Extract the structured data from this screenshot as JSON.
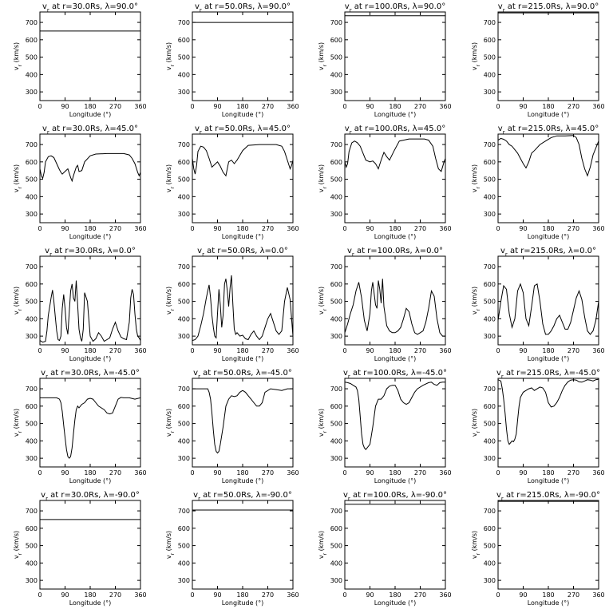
{
  "figure": {
    "grid_title_template": "v_r at r={r}Rs, λ={lat}°"
  },
  "chart_data": {
    "type": "line",
    "layout": "5 rows x 4 columns",
    "xlabel": "Longitude (°)",
    "ylabel": "v_r (km/s)",
    "xlim": [
      0,
      360
    ],
    "ylim": [
      250,
      760
    ],
    "xticks": [
      0,
      90,
      180,
      270,
      360
    ],
    "yticks": [
      300,
      400,
      500,
      600,
      700
    ],
    "radii": [
      "30.0",
      "50.0",
      "100.0",
      "215.0"
    ],
    "latitudes": [
      "90.0",
      "45.0",
      "0.0",
      "-45.0",
      "-90.0"
    ],
    "panels": [
      {
        "title": "v_r at r=30.0Rs, λ=90.0°",
        "x": [
          0,
          360
        ],
        "y": [
          650,
          650
        ]
      },
      {
        "title": "v_r at r=50.0Rs, λ=90.0°",
        "x": [
          0,
          360
        ],
        "y": [
          700,
          700
        ]
      },
      {
        "title": "v_r at r=100.0Rs, λ=90.0°",
        "x": [
          0,
          360
        ],
        "y": [
          738,
          738
        ]
      },
      {
        "title": "v_r at r=215.0Rs, λ=90.0°",
        "x": [
          0,
          360
        ],
        "y": [
          755,
          755
        ]
      },
      {
        "title": "v_r at r=30.0Rs, λ=45.0°",
        "x": [
          0,
          5,
          10,
          15,
          20,
          30,
          40,
          50,
          60,
          70,
          75,
          80,
          90,
          100,
          110,
          115,
          120,
          130,
          135,
          140,
          150,
          160,
          180,
          200,
          240,
          270,
          300,
          320,
          330,
          340,
          350,
          355,
          360
        ],
        "y": [
          560,
          520,
          505,
          540,
          600,
          630,
          635,
          625,
          590,
          555,
          540,
          530,
          545,
          560,
          510,
          490,
          520,
          570,
          580,
          545,
          550,
          600,
          635,
          645,
          648,
          648,
          648,
          640,
          620,
          590,
          540,
          520,
          540
        ]
      },
      {
        "title": "v_r at r=50.0Rs, λ=45.0°",
        "x": [
          0,
          5,
          10,
          15,
          20,
          30,
          40,
          50,
          60,
          70,
          80,
          90,
          100,
          110,
          120,
          130,
          140,
          150,
          160,
          180,
          200,
          240,
          270,
          300,
          320,
          330,
          340,
          350,
          355,
          360
        ],
        "y": [
          620,
          560,
          530,
          580,
          660,
          690,
          685,
          665,
          620,
          570,
          585,
          600,
          575,
          540,
          520,
          600,
          610,
          590,
          610,
          665,
          695,
          700,
          700,
          700,
          690,
          660,
          610,
          560,
          580,
          610
        ]
      },
      {
        "title": "v_r at r=100.0Rs, λ=45.0°",
        "x": [
          0,
          5,
          10,
          15,
          25,
          35,
          45,
          55,
          65,
          75,
          90,
          100,
          110,
          120,
          130,
          140,
          150,
          160,
          175,
          195,
          230,
          260,
          285,
          300,
          315,
          325,
          335,
          345,
          355,
          360
        ],
        "y": [
          600,
          570,
          590,
          660,
          710,
          720,
          710,
          690,
          650,
          610,
          600,
          605,
          590,
          560,
          610,
          655,
          630,
          610,
          660,
          720,
          732,
          732,
          732,
          725,
          690,
          620,
          560,
          545,
          600,
          620
        ]
      },
      {
        "title": "v_r at r=215.0Rs, λ=45.0°",
        "x": [
          0,
          10,
          20,
          30,
          40,
          50,
          60,
          70,
          80,
          90,
          100,
          110,
          120,
          130,
          150,
          170,
          190,
          210,
          240,
          270,
          280,
          290,
          300,
          310,
          320,
          330,
          340,
          350,
          360
        ],
        "y": [
          725,
          735,
          730,
          720,
          700,
          690,
          670,
          650,
          620,
          590,
          565,
          600,
          650,
          665,
          700,
          720,
          740,
          750,
          750,
          752,
          740,
          700,
          620,
          560,
          520,
          570,
          640,
          680,
          720
        ]
      },
      {
        "title": "v_r at r=30.0Rs, λ=0.0°",
        "x": [
          0,
          10,
          20,
          25,
          30,
          35,
          40,
          45,
          50,
          55,
          60,
          65,
          70,
          75,
          80,
          85,
          90,
          95,
          100,
          105,
          110,
          115,
          120,
          125,
          130,
          135,
          140,
          145,
          150,
          155,
          160,
          170,
          180,
          190,
          200,
          210,
          220,
          230,
          240,
          250,
          260,
          270,
          280,
          290,
          300,
          310,
          320,
          325,
          330,
          335,
          340,
          345,
          350,
          355,
          360
        ],
        "y": [
          275,
          265,
          270,
          330,
          420,
          470,
          520,
          565,
          500,
          410,
          330,
          280,
          275,
          300,
          460,
          540,
          460,
          350,
          310,
          440,
          560,
          600,
          520,
          500,
          620,
          480,
          340,
          290,
          270,
          340,
          550,
          500,
          300,
          270,
          285,
          320,
          300,
          270,
          280,
          290,
          340,
          380,
          330,
          295,
          285,
          280,
          380,
          520,
          570,
          540,
          430,
          340,
          300,
          290,
          275
        ]
      },
      {
        "title": "v_r at r=50.0Rs, λ=0.0°",
        "x": [
          0,
          10,
          20,
          30,
          40,
          50,
          55,
          60,
          65,
          70,
          75,
          80,
          85,
          90,
          95,
          100,
          105,
          110,
          115,
          120,
          125,
          130,
          135,
          140,
          145,
          150,
          155,
          160,
          170,
          180,
          190,
          200,
          210,
          220,
          230,
          240,
          250,
          260,
          270,
          280,
          290,
          300,
          310,
          320,
          330,
          340,
          350,
          360
        ],
        "y": [
          275,
          280,
          300,
          360,
          430,
          520,
          560,
          595,
          520,
          420,
          350,
          300,
          290,
          430,
          570,
          480,
          350,
          420,
          600,
          630,
          560,
          470,
          580,
          650,
          480,
          340,
          310,
          320,
          300,
          305,
          285,
          280,
          310,
          330,
          300,
          280,
          300,
          350,
          400,
          430,
          380,
          330,
          310,
          330,
          500,
          580,
          510,
          300
        ]
      },
      {
        "title": "v_r at r=100.0Rs, λ=0.0°",
        "x": [
          0,
          10,
          20,
          30,
          40,
          50,
          60,
          70,
          80,
          90,
          95,
          100,
          110,
          115,
          120,
          125,
          130,
          135,
          140,
          150,
          160,
          170,
          180,
          190,
          200,
          210,
          220,
          230,
          240,
          250,
          260,
          270,
          280,
          290,
          300,
          310,
          320,
          330,
          340,
          350,
          360
        ],
        "y": [
          320,
          370,
          430,
          480,
          560,
          610,
          520,
          390,
          330,
          430,
          560,
          610,
          480,
          460,
          620,
          570,
          490,
          630,
          470,
          360,
          330,
          320,
          320,
          330,
          350,
          400,
          460,
          440,
          370,
          320,
          310,
          320,
          330,
          380,
          460,
          560,
          530,
          400,
          320,
          300,
          300
        ]
      },
      {
        "title": "v_r at r=215.0Rs, λ=0.0°",
        "x": [
          0,
          10,
          20,
          30,
          40,
          50,
          60,
          70,
          80,
          90,
          100,
          110,
          120,
          130,
          140,
          150,
          160,
          170,
          180,
          190,
          200,
          210,
          220,
          230,
          240,
          250,
          260,
          270,
          280,
          290,
          300,
          310,
          320,
          330,
          340,
          350,
          360
        ],
        "y": [
          390,
          500,
          590,
          570,
          430,
          350,
          400,
          560,
          600,
          550,
          400,
          360,
          470,
          590,
          600,
          500,
          370,
          310,
          310,
          330,
          360,
          400,
          420,
          380,
          340,
          340,
          380,
          450,
          520,
          560,
          510,
          410,
          330,
          310,
          330,
          390,
          500
        ]
      },
      {
        "title": "v_r at r=30.0Rs, λ=-45.0°",
        "x": [
          0,
          20,
          40,
          60,
          70,
          75,
          80,
          85,
          90,
          95,
          100,
          105,
          110,
          115,
          120,
          125,
          130,
          135,
          140,
          150,
          160,
          170,
          180,
          190,
          200,
          210,
          220,
          230,
          240,
          250,
          260,
          270,
          280,
          290,
          300,
          320,
          340,
          360
        ],
        "y": [
          648,
          648,
          648,
          648,
          640,
          620,
          570,
          490,
          420,
          350,
          310,
          300,
          310,
          360,
          440,
          520,
          580,
          600,
          590,
          610,
          620,
          640,
          645,
          640,
          620,
          600,
          590,
          580,
          560,
          555,
          560,
          600,
          640,
          650,
          648,
          648,
          640,
          648
        ]
      },
      {
        "title": "v_r at r=50.0Rs, λ=-45.0°",
        "x": [
          0,
          20,
          40,
          55,
          60,
          65,
          70,
          75,
          80,
          85,
          90,
          95,
          100,
          110,
          120,
          130,
          140,
          150,
          160,
          170,
          180,
          190,
          200,
          210,
          220,
          230,
          240,
          250,
          260,
          280,
          300,
          320,
          340,
          360
        ],
        "y": [
          700,
          700,
          700,
          700,
          680,
          640,
          560,
          460,
          380,
          340,
          330,
          340,
          380,
          480,
          600,
          640,
          660,
          655,
          660,
          680,
          690,
          680,
          660,
          640,
          620,
          600,
          600,
          620,
          680,
          700,
          695,
          690,
          700,
          700
        ]
      },
      {
        "title": "v_r at r=100.0Rs, λ=-45.0°",
        "x": [
          0,
          10,
          20,
          30,
          40,
          45,
          50,
          55,
          60,
          65,
          70,
          75,
          80,
          90,
          100,
          110,
          120,
          130,
          140,
          150,
          160,
          170,
          180,
          190,
          200,
          210,
          220,
          230,
          240,
          250,
          260,
          280,
          300,
          310,
          320,
          330,
          340,
          350,
          360
        ],
        "y": [
          738,
          735,
          730,
          720,
          710,
          690,
          640,
          540,
          440,
          380,
          360,
          350,
          360,
          380,
          480,
          600,
          640,
          640,
          660,
          700,
          715,
          720,
          720,
          690,
          640,
          620,
          610,
          620,
          650,
          680,
          700,
          720,
          735,
          738,
          725,
          720,
          735,
          738,
          738
        ]
      },
      {
        "title": "v_r at r=215.0Rs, λ=-45.0°",
        "x": [
          0,
          10,
          15,
          20,
          25,
          30,
          35,
          40,
          45,
          50,
          55,
          60,
          65,
          70,
          75,
          80,
          90,
          100,
          110,
          120,
          130,
          140,
          150,
          160,
          170,
          180,
          190,
          200,
          210,
          220,
          230,
          240,
          250,
          260,
          270,
          280,
          290,
          300,
          310,
          320,
          330,
          340,
          350,
          360
        ],
        "y": [
          752,
          745,
          700,
          640,
          560,
          470,
          400,
          380,
          390,
          400,
          395,
          410,
          440,
          520,
          600,
          650,
          680,
          690,
          700,
          705,
          690,
          700,
          710,
          705,
          680,
          620,
          595,
          600,
          620,
          650,
          690,
          720,
          740,
          750,
          752,
          750,
          740,
          738,
          745,
          752,
          750,
          745,
          752,
          755
        ]
      },
      {
        "title": "v_r at r=30.0Rs, λ=-90.0°",
        "x": [
          0,
          360
        ],
        "y": [
          650,
          650
        ]
      },
      {
        "title": "v_r at r=50.0Rs, λ=-90.0°",
        "x": [
          0,
          360
        ],
        "y": [
          705,
          705
        ]
      },
      {
        "title": "v_r at r=100.0Rs, λ=-90.0°",
        "x": [
          0,
          360
        ],
        "y": [
          738,
          738
        ]
      },
      {
        "title": "v_r at r=215.0Rs, λ=-90.0°",
        "x": [
          0,
          360
        ],
        "y": [
          755,
          755
        ]
      }
    ]
  }
}
